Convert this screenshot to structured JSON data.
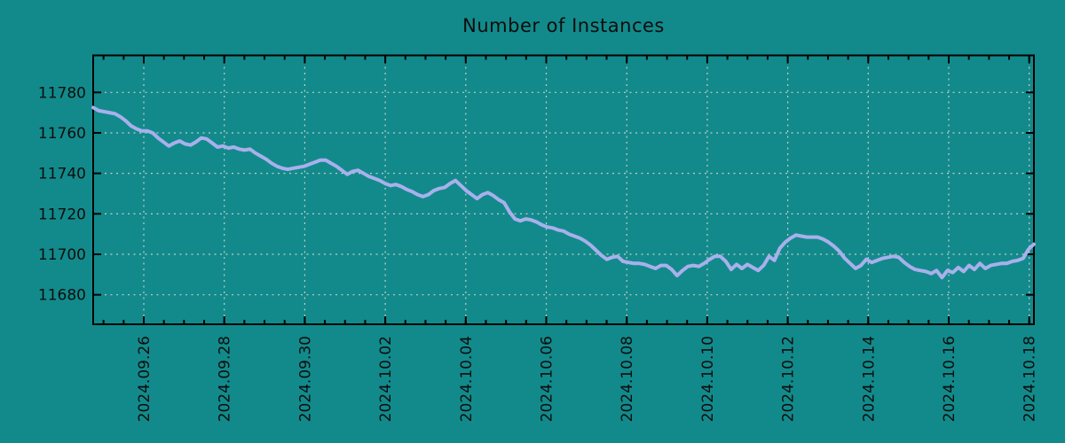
{
  "figure": {
    "title": "Number of Instances",
    "background_color": "#128a8b",
    "line_color": "#a9b0ec",
    "grid_color": "#cacaca",
    "axis_color": "#000000",
    "text_color": "#0d0d0d"
  },
  "chart_data": {
    "type": "line",
    "title": "Number of Instances",
    "xlabel": "",
    "ylabel": "",
    "legend": "none",
    "grid": "dashed",
    "x_tick_labels": [
      "2024.09.26",
      "2024.09.28",
      "2024.09.30",
      "2024.10.02",
      "2024.10.04",
      "2024.10.06",
      "2024.10.08",
      "2024.10.10",
      "2024.10.12",
      "2024.10.14",
      "2024.10.16",
      "2024.10.18"
    ],
    "x_major_tick_interval_days": 2,
    "x_minor_tick_interval_days": 0.5,
    "x_start": "2024-09-24 18:00",
    "x_end": "2024-10-18 02:00",
    "y_ticks": [
      11680,
      11700,
      11720,
      11740,
      11760,
      11780
    ],
    "ylim": [
      11665,
      11798
    ],
    "series": [
      {
        "name": "instances",
        "sampling": "evenly spaced between x_start and x_end (~3.2 h)",
        "values": [
          11772.5,
          11771,
          11770.5,
          11770,
          11769.5,
          11768,
          11766,
          11763.5,
          11762,
          11761,
          11761,
          11760,
          11757.5,
          11755.5,
          11753.5,
          11755,
          11756,
          11754.5,
          11754,
          11755.5,
          11757.5,
          11757,
          11755,
          11753,
          11753.5,
          11752.5,
          11753,
          11752,
          11751.5,
          11752,
          11750,
          11748.5,
          11747,
          11745,
          11743.5,
          11742.5,
          11742,
          11742.5,
          11743,
          11743.5,
          11744.5,
          11745.5,
          11746.5,
          11746.5,
          11745,
          11743.5,
          11741.5,
          11739.5,
          11741,
          11741.5,
          11740,
          11738.5,
          11737.5,
          11736.5,
          11735,
          11734,
          11734.5,
          11733.5,
          11732,
          11731,
          11729.5,
          11728.5,
          11729.5,
          11731.5,
          11732.5,
          11733,
          11735,
          11736.5,
          11734,
          11731.5,
          11729.5,
          11727.5,
          11729.5,
          11730.5,
          11729,
          11727,
          11725.5,
          11721,
          11717.5,
          11716.5,
          11717.5,
          11717,
          11716,
          11714.5,
          11713.5,
          11713,
          11712,
          11711.5,
          11710,
          11709,
          11708,
          11706.5,
          11704.5,
          11702,
          11699.5,
          11697.5,
          11698.5,
          11699,
          11696.5,
          11696,
          11695.5,
          11695.5,
          11695,
          11694,
          11693,
          11694.5,
          11694.5,
          11692.5,
          11689.5,
          11692,
          11694,
          11694.5,
          11694,
          11695.5,
          11697.5,
          11699,
          11699,
          11696.5,
          11692.5,
          11695,
          11693,
          11695,
          11693.5,
          11692,
          11694.5,
          11699,
          11697,
          11703,
          11706,
          11708,
          11709.5,
          11709,
          11708.5,
          11708.5,
          11708.5,
          11707.5,
          11706,
          11704,
          11701.5,
          11698,
          11695.5,
          11693,
          11694.5,
          11697.5,
          11696,
          11697,
          11698,
          11698.5,
          11699,
          11698.5,
          11696,
          11694,
          11692.5,
          11692,
          11691.5,
          11690.5,
          11692,
          11688.5,
          11692,
          11691,
          11693.5,
          11691.5,
          11694.5,
          11692.5,
          11695.5,
          11693,
          11694.5,
          11695,
          11695.5,
          11695.5,
          11696.5,
          11697,
          11698,
          11702.5,
          11705
        ]
      }
    ]
  }
}
